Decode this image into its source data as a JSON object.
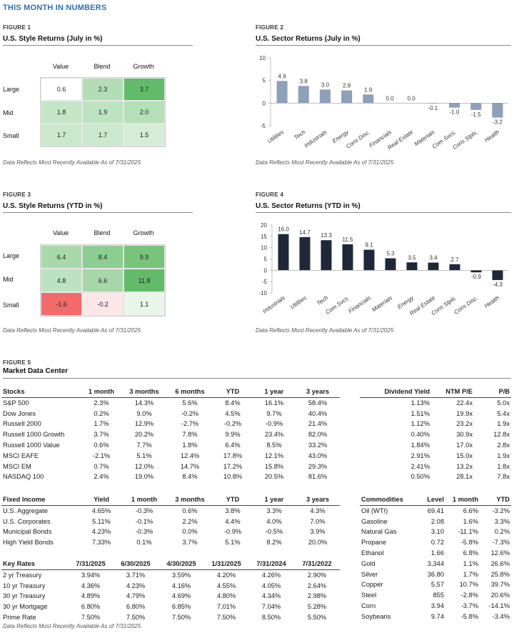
{
  "page_title": "THIS MONTH IN NUMBERS",
  "footnote": "Data Reflects Most Recently Available As of 7/31/2025",
  "fig1": {
    "label": "FIGURE 1",
    "title": "U.S. Style Returns (July in %)",
    "columns": [
      "Value",
      "Blend",
      "Growth"
    ],
    "rows": [
      "Large",
      "Mid",
      "Small"
    ],
    "cells": [
      [
        "0.6",
        "2.3",
        "3.7"
      ],
      [
        "1.8",
        "1.9",
        "2.0"
      ],
      [
        "1.7",
        "1.7",
        "1.5"
      ]
    ],
    "colors": [
      [
        "#ffffff",
        "#b3deb5",
        "#62bb69"
      ],
      [
        "#c4e6c6",
        "#bde3c0",
        "#b4dfb7"
      ],
      [
        "#cae8cc",
        "#cae8cc",
        "#d5edd7"
      ]
    ]
  },
  "fig2": {
    "label": "FIGURE 2",
    "title": "U.S. Sector Returns (July in %)"
  },
  "fig3": {
    "label": "FIGURE 3",
    "title": "U.S. Style Returns (YTD in %)",
    "columns": [
      "Value",
      "Blend",
      "Growth"
    ],
    "rows": [
      "Large",
      "Mid",
      "Small"
    ],
    "cells": [
      [
        "6.4",
        "8.4",
        "9.9"
      ],
      [
        "4.8",
        "6.6",
        "11.8"
      ],
      [
        "-1.6",
        "-0.2",
        "1.1"
      ]
    ],
    "colors": [
      [
        "#a8d9ab",
        "#8ccd90",
        "#78c47d"
      ],
      [
        "#bde2c0",
        "#a5d7a8",
        "#62bb69"
      ],
      [
        "#f26a6a",
        "#fde6e7",
        "#e9f5ea"
      ]
    ]
  },
  "fig4": {
    "label": "FIGURE 4",
    "title": "U.S. Sector Returns (YTD in %)"
  },
  "fig5": {
    "label": "FIGURE 5",
    "title": "Market Data Center"
  },
  "stocks": {
    "headers": [
      "Stocks",
      "1 month",
      "3 months",
      "6 months",
      "YTD",
      "1 year",
      "3 years"
    ],
    "rows": [
      [
        "S&P 500",
        "2.3%",
        "14.3%",
        "5.6%",
        "8.4%",
        "16.1%",
        "58.4%"
      ],
      [
        "Dow Jones",
        "0.2%",
        "9.0%",
        "-0.2%",
        "4.5%",
        "9.7%",
        "40.4%"
      ],
      [
        "Russell 2000",
        "1.7%",
        "12.9%",
        "-2.7%",
        "-0.2%",
        "-0.9%",
        "21.4%"
      ],
      [
        "Russell 1000 Growth",
        "3.7%",
        "20.2%",
        "7.8%",
        "9.9%",
        "23.4%",
        "82.0%"
      ],
      [
        "Russell 1000 Value",
        "0.6%",
        "7.7%",
        "1.8%",
        "6.4%",
        "8.5%",
        "33.2%"
      ],
      [
        "MSCI EAFE",
        "-2.1%",
        "5.1%",
        "12.4%",
        "17.8%",
        "12.1%",
        "43.0%"
      ],
      [
        "MSCI EM",
        "0.7%",
        "12.0%",
        "14.7%",
        "17.2%",
        "15.8%",
        "29.3%"
      ],
      [
        "NASDAQ 100",
        "2.4%",
        "19.0%",
        "8.4%",
        "10.8%",
        "20.5%",
        "81.6%"
      ]
    ]
  },
  "dividend": {
    "headers": [
      "Dividend Yield",
      "NTM P/E",
      "P/B"
    ],
    "rows": [
      [
        "1.13%",
        "22.4x",
        "5.0x"
      ],
      [
        "1.51%",
        "19.9x",
        "5.4x"
      ],
      [
        "1.12%",
        "23.2x",
        "1.9x"
      ],
      [
        "0.40%",
        "30.9x",
        "12.8x"
      ],
      [
        "1.84%",
        "17.0x",
        "2.8x"
      ],
      [
        "2.91%",
        "15.0x",
        "1.9x"
      ],
      [
        "2.41%",
        "13.2x",
        "1.8x"
      ],
      [
        "0.50%",
        "28.1x",
        "7.8x"
      ]
    ]
  },
  "fixed_income": {
    "headers": [
      "Fixed Income",
      "Yield",
      "1 month",
      "3 months",
      "YTD",
      "1 year",
      "3 years"
    ],
    "rows": [
      [
        "U.S. Aggregate",
        "4.65%",
        "-0.3%",
        "0.6%",
        "3.8%",
        "3.3%",
        "4.3%"
      ],
      [
        "U.S. Corporates",
        "5.11%",
        "-0.1%",
        "2.2%",
        "4.4%",
        "4.0%",
        "7.0%"
      ],
      [
        "Municipal Bonds",
        "4.23%",
        "-0.3%",
        "0.0%",
        "-0.9%",
        "-0.5%",
        "3.9%"
      ],
      [
        "High Yield Bonds",
        "7.33%",
        "0.1%",
        "3.7%",
        "5.1%",
        "8.2%",
        "20.0%"
      ]
    ]
  },
  "key_rates": {
    "headers": [
      "Key Rates",
      "7/31/2025",
      "6/30/2025",
      "4/30/2025",
      "1/31/2025",
      "7/31/2024",
      "7/31/2022"
    ],
    "rows": [
      [
        "2 yr Treasury",
        "3.94%",
        "3.71%",
        "3.59%",
        "4.20%",
        "4.26%",
        "2.90%"
      ],
      [
        "10 yr Treasury",
        "4.36%",
        "4.23%",
        "4.16%",
        "4.55%",
        "4.05%",
        "2.64%"
      ],
      [
        "30 yr Treasury",
        "4.89%",
        "4.79%",
        "4.69%",
        "4.80%",
        "4.34%",
        "2.98%"
      ],
      [
        "30 yr Mortgage",
        "6.80%",
        "6.80%",
        "6.85%",
        "7.01%",
        "7.04%",
        "5.28%"
      ],
      [
        "Prime Rate",
        "7.50%",
        "7.50%",
        "7.50%",
        "7.50%",
        "8.50%",
        "5.50%"
      ]
    ]
  },
  "commodities": {
    "headers": [
      "Commodities",
      "Level",
      "1 month",
      "YTD"
    ],
    "rows": [
      [
        "Oil (WTI)",
        "69.41",
        "6.6%",
        "-3.2%"
      ],
      [
        "Gasoline",
        "2.08",
        "1.6%",
        "3.3%"
      ],
      [
        "Natural Gas",
        "3.10",
        "-11.1%",
        "0.2%"
      ],
      [
        "Propane",
        "0.72",
        "-5.8%",
        "-7.3%"
      ],
      [
        "Ethanol",
        "1.66",
        "6.8%",
        "12.6%"
      ],
      [
        "Gold",
        "3,344",
        "1.1%",
        "26.6%"
      ],
      [
        "Silver",
        "36.80",
        "1.7%",
        "25.8%"
      ],
      [
        "Copper",
        "5.57",
        "10.7%",
        "39.7%"
      ],
      [
        "Steel",
        "855",
        "-2.8%",
        "20.6%"
      ],
      [
        "Corn",
        "3.94",
        "-3.7%",
        "-14.1%"
      ],
      [
        "Soybeans",
        "9.74",
        "-5.8%",
        "-3.4%"
      ]
    ]
  },
  "chart_data": [
    {
      "type": "bar",
      "title": "U.S. Sector Returns (July in %)",
      "categories": [
        "Utilities",
        "Tech",
        "Industrials",
        "Energy",
        "Cons Disc.",
        "Financials",
        "Real Estate",
        "Materials",
        "Com Svcs.",
        "Cons Stpls.",
        "Health"
      ],
      "values": [
        4.9,
        3.8,
        3.0,
        2.8,
        1.9,
        0.0,
        0.0,
        -0.1,
        -1.0,
        -1.5,
        -3.2
      ],
      "labels": [
        "4.9",
        "3.8",
        "3.0",
        "2.8",
        "1.9",
        "0.0",
        "0.0",
        "-0.1",
        "-1.0",
        "-1.5",
        "-3.2"
      ],
      "ylim": [
        -5,
        10
      ],
      "yticks": [
        "10",
        "5",
        "0",
        "-5"
      ],
      "ytick_values": [
        10,
        5,
        0,
        -5
      ],
      "color": "#8fa0b9",
      "grid": false
    },
    {
      "type": "bar",
      "title": "U.S. Sector Returns (YTD in %)",
      "categories": [
        "Industrials",
        "Utilities",
        "Tech",
        "Com Svcs.",
        "Financials",
        "Materials",
        "Energy",
        "Real Estate",
        "Cons Stpls.",
        "Cons Disc.",
        "Health"
      ],
      "values": [
        16.0,
        14.7,
        13.3,
        11.5,
        9.1,
        5.3,
        3.5,
        3.4,
        2.7,
        -0.9,
        -4.3
      ],
      "labels": [
        "16.0",
        "14.7",
        "13.3",
        "11.5",
        "9.1",
        "5.3",
        "3.5",
        "3.4",
        "2.7",
        "-0.9",
        "-4.3"
      ],
      "ylim": [
        -10,
        20
      ],
      "yticks": [
        "20",
        "15",
        "10",
        "5",
        "0",
        "-5",
        "-10"
      ],
      "ytick_values": [
        20,
        15,
        10,
        5,
        0,
        -5,
        -10
      ],
      "color": "#1e2838",
      "grid": false
    }
  ]
}
